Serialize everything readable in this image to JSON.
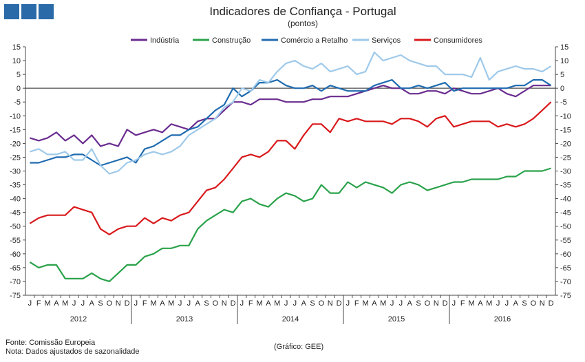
{
  "chart_data": {
    "type": "line",
    "title": "Indicadores de Confiança - Portugal",
    "subtitle": "(pontos)",
    "ylim": [
      -75,
      15
    ],
    "yticks": [
      15,
      10,
      5,
      0,
      -5,
      -10,
      -15,
      -20,
      -25,
      -30,
      -35,
      -40,
      -45,
      -50,
      -55,
      -60,
      -65,
      -70,
      -75
    ],
    "month_labels": [
      "J",
      "F",
      "M",
      "A",
      "M",
      "J",
      "J",
      "A",
      "S",
      "O",
      "N",
      "D"
    ],
    "years": [
      "2012",
      "2013",
      "2014",
      "2015",
      "2016"
    ],
    "legend_position": "top",
    "series": [
      {
        "name": "Indústria",
        "color": "#6a2c8f",
        "values": [
          -18,
          -19,
          -18,
          -16,
          -19,
          -17,
          -20,
          -17,
          -21,
          -20,
          -21,
          -15,
          -17,
          -16,
          -15,
          -16,
          -13,
          -14,
          -15,
          -12,
          -11,
          -11,
          -8,
          -5,
          -5,
          -6,
          -4,
          -4,
          -4,
          -5,
          -5,
          -5,
          -4,
          -4,
          -3,
          -3,
          -3,
          -2,
          -1,
          0,
          1,
          0,
          0,
          -2,
          -2,
          -1,
          -1,
          -2,
          0,
          -1,
          -2,
          -2,
          -1,
          0,
          -2,
          -3,
          -1,
          1,
          1,
          1
        ]
      },
      {
        "name": "Construção",
        "color": "#2aa24a",
        "values": [
          -63,
          -65,
          -64,
          -64,
          -69,
          -69,
          -69,
          -67,
          -69,
          -70,
          -67,
          -64,
          -64,
          -61,
          -60,
          -58,
          -58,
          -57,
          -57,
          -51,
          -48,
          -46,
          -44,
          -45,
          -41,
          -40,
          -42,
          -43,
          -40,
          -38,
          -39,
          -41,
          -40,
          -35,
          -38,
          -38,
          -34,
          -36,
          -34,
          -35,
          -36,
          -38,
          -35,
          -34,
          -35,
          -37,
          -36,
          -35,
          -34,
          -34,
          -33,
          -33,
          -33,
          -33,
          -32,
          -32,
          -30,
          -30,
          -30,
          -29
        ]
      },
      {
        "name": "Comércio a Retalho",
        "color": "#1f6bb0",
        "values": [
          -27,
          -27,
          -26,
          -25,
          -25,
          -24,
          -24,
          -26,
          -28,
          -27,
          -26,
          -25,
          -27,
          -22,
          -21,
          -19,
          -17,
          -17,
          -15,
          -14,
          -11,
          -8,
          -6,
          0,
          -3,
          -1,
          2,
          2,
          3,
          1,
          0,
          0,
          1,
          -1,
          1,
          0,
          -1,
          -1,
          -1,
          1,
          2,
          3,
          0,
          0,
          1,
          0,
          1,
          2,
          -1,
          0,
          0,
          0,
          0,
          0,
          0,
          1,
          1,
          3,
          3,
          1
        ]
      },
      {
        "name": "Serviços",
        "color": "#9ec9ea",
        "values": [
          -23,
          -22,
          -24,
          -24,
          -23,
          -26,
          -26,
          -22,
          -28,
          -31,
          -30,
          -27,
          -26,
          -24,
          -23,
          -24,
          -23,
          -21,
          -17,
          -15,
          -13,
          -11,
          -7,
          -5,
          0,
          -1,
          3,
          2,
          6,
          9,
          10,
          8,
          7,
          9,
          6,
          7,
          8,
          5,
          6,
          13,
          10,
          11,
          12,
          10,
          9,
          8,
          8,
          5,
          5,
          5,
          4,
          11,
          3,
          6,
          7,
          8,
          7,
          7,
          6,
          8
        ]
      },
      {
        "name": "Consumidores",
        "color": "#d9191c",
        "values": [
          -49,
          -47,
          -46,
          -46,
          -46,
          -43,
          -44,
          -45,
          -51,
          -53,
          -51,
          -50,
          -50,
          -47,
          -49,
          -47,
          -48,
          -46,
          -45,
          -41,
          -37,
          -36,
          -33,
          -29,
          -25,
          -24,
          -25,
          -23,
          -19,
          -19,
          -22,
          -17,
          -13,
          -13,
          -16,
          -11,
          -12,
          -11,
          -12,
          -12,
          -12,
          -13,
          -11,
          -11,
          -12,
          -14,
          -11,
          -10,
          -14,
          -13,
          -12,
          -12,
          -12,
          -14,
          -13,
          -14,
          -13,
          -11,
          -8,
          -5
        ]
      }
    ]
  },
  "footer": {
    "source": "Fonte: Comissão Europeia",
    "note": "Nota: Dados ajustados de sazonalidade",
    "credit": "(Gráfico: GEE)"
  }
}
